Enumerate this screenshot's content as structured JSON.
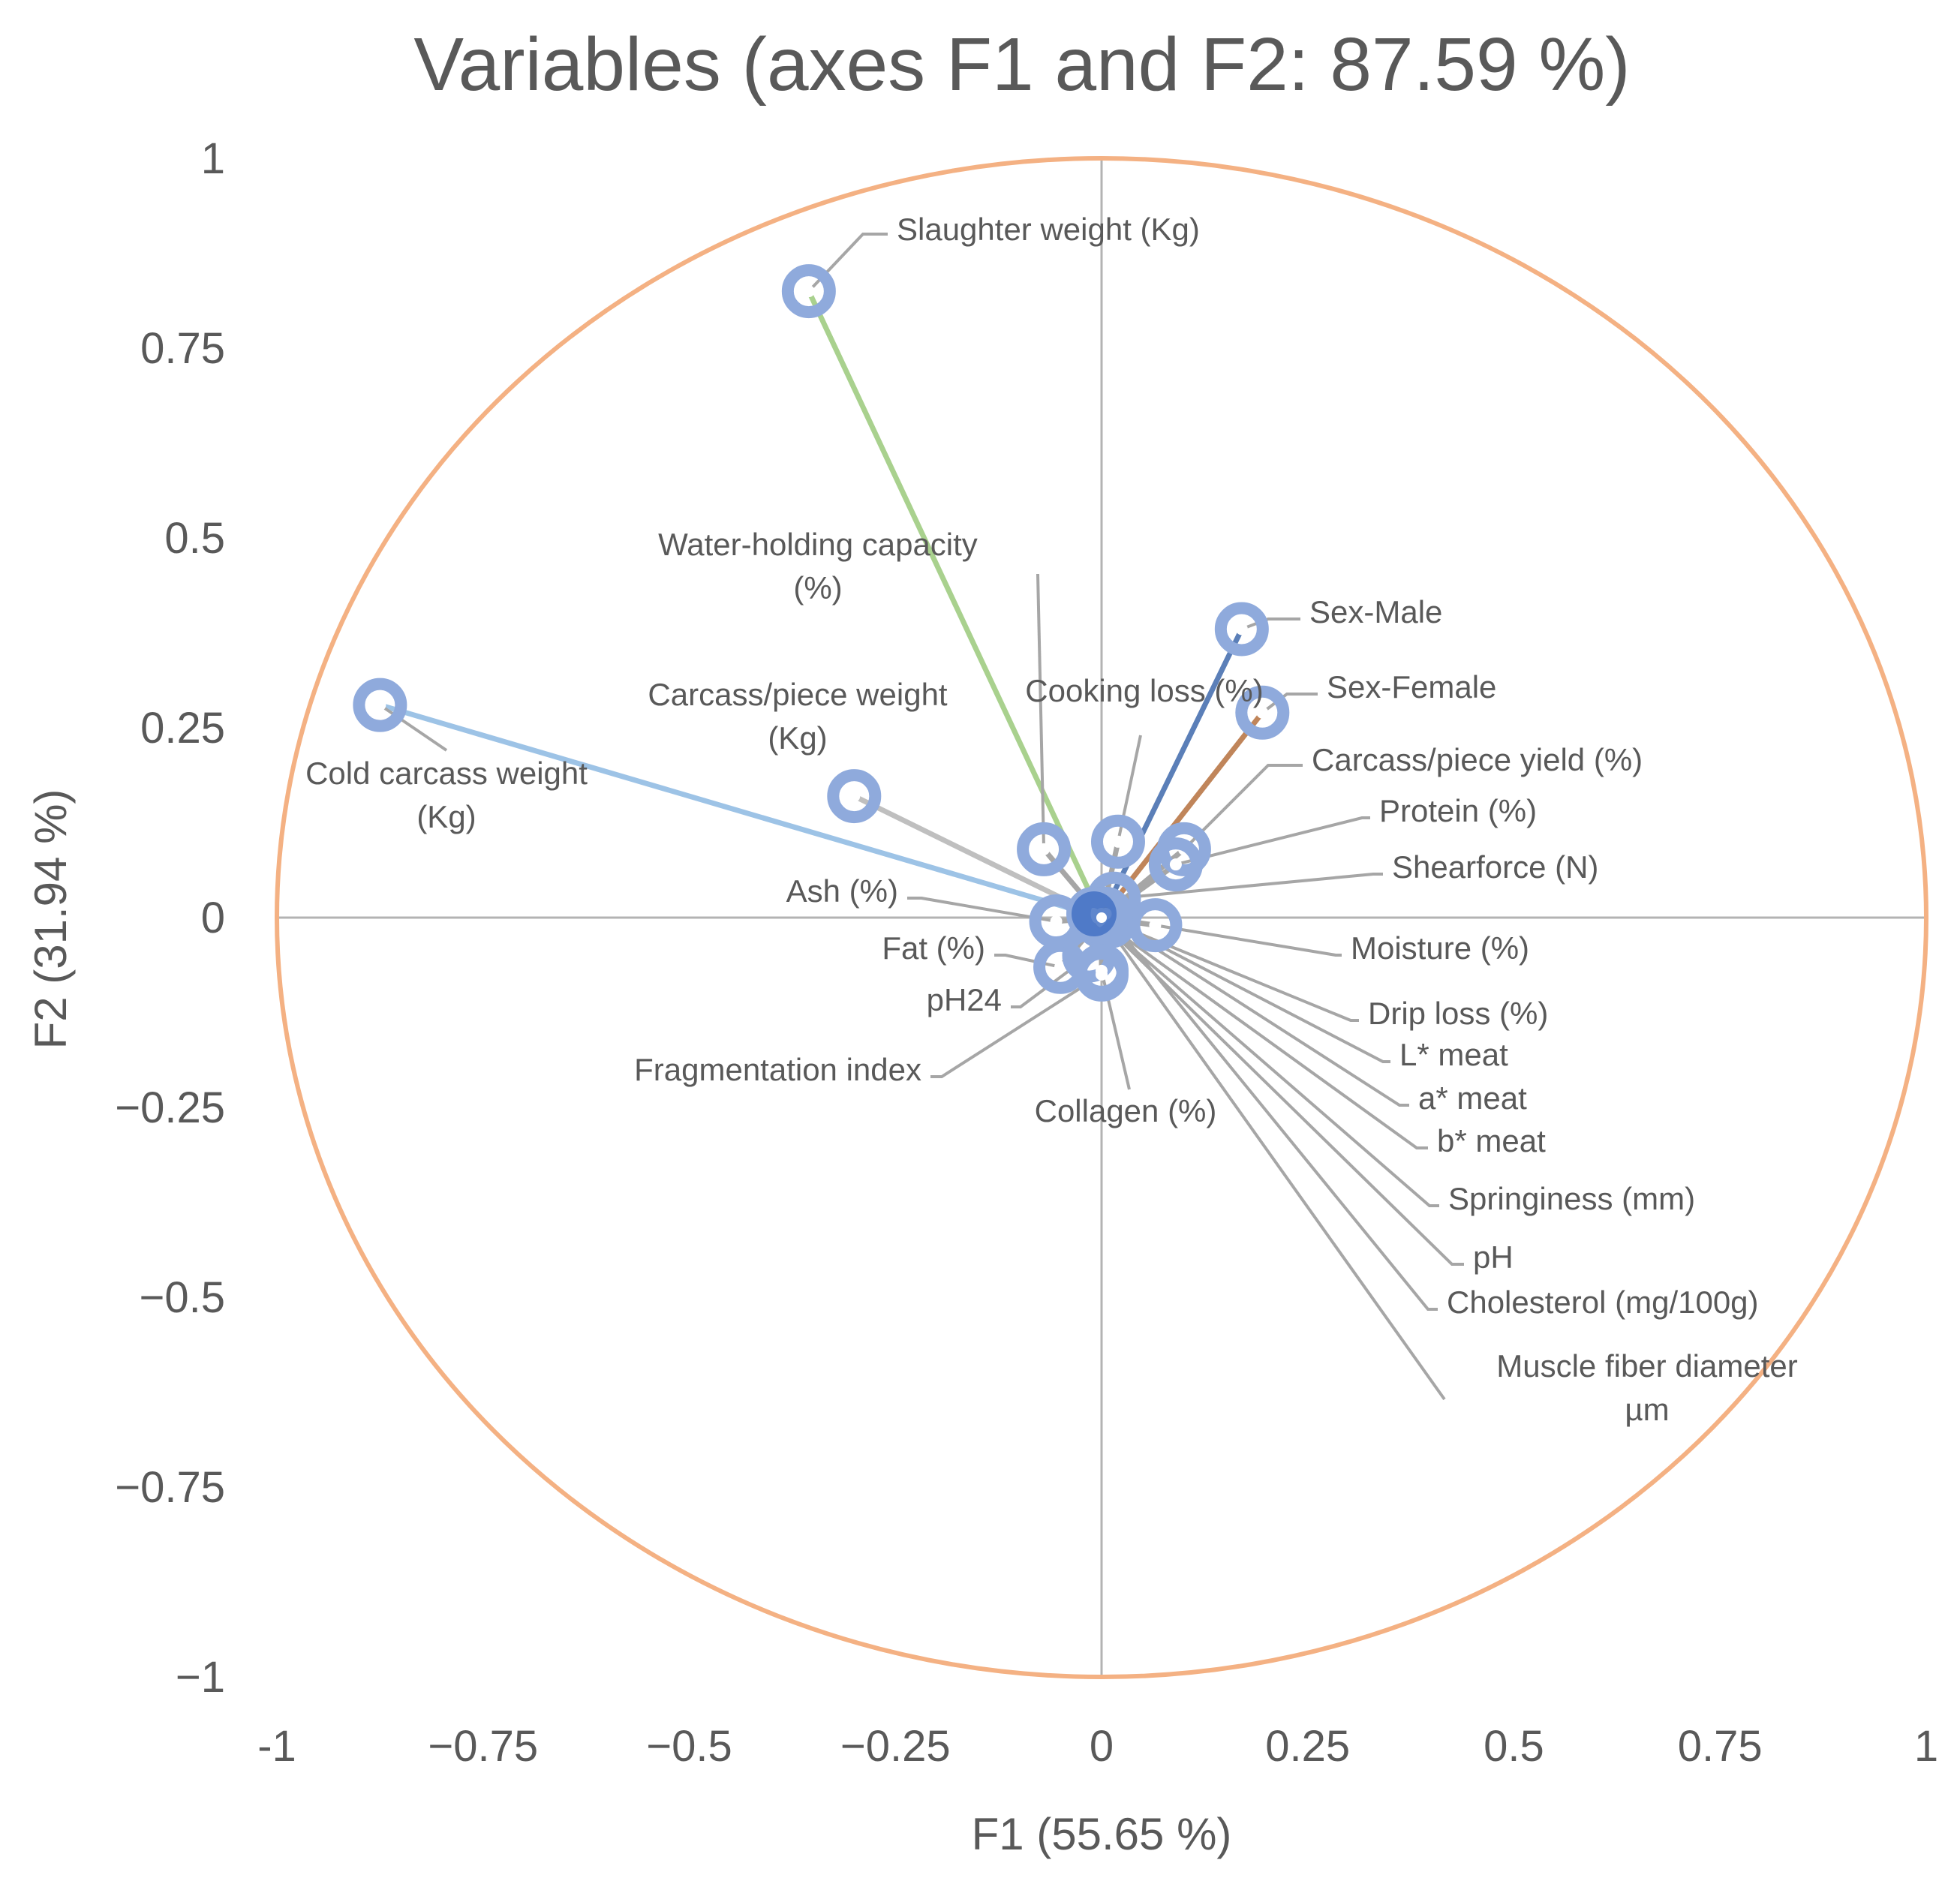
{
  "chart_data": {
    "type": "scatter",
    "subtype": "pca-correlation-circle",
    "title": "Variables (axes F1 and F2: 87.59 %)",
    "xlabel": "F1 (55.65 %)",
    "ylabel": "F2 (31.94 %)",
    "xlim": [
      -1,
      1
    ],
    "ylim": [
      -1,
      1
    ],
    "xticks": [
      -1,
      -0.75,
      -0.5,
      -0.25,
      0,
      0.25,
      0.5,
      0.75,
      1
    ],
    "yticks": [
      1,
      0.75,
      0.5,
      0.25,
      0,
      -0.25,
      -0.5,
      -0.75,
      -1
    ],
    "xtick_labels": [
      "-1",
      "−0.75",
      "−0.5",
      "−0.25",
      "0",
      "0.25",
      "0.5",
      "0.75",
      "1"
    ],
    "ytick_labels": [
      "1",
      "0.75",
      "0.5",
      "0.25",
      "0",
      "−0.25",
      "−0.5",
      "−0.75",
      "−1"
    ],
    "circle_color": "#f4b183",
    "marker_color": "#8faadc",
    "leader_color": "#a6a6a6",
    "series": [
      {
        "name": "Slaughter weight (Kg)",
        "x": -0.355,
        "y": 0.825,
        "line_color": "#a9d18e"
      },
      {
        "name": "Cold carcass weight (Kg)",
        "x": -0.875,
        "y": 0.28,
        "line_color": "#9dc3e6"
      },
      {
        "name": "Carcass/piece weight (Kg)",
        "x": -0.3,
        "y": 0.16,
        "line_color": "#bfbfbf"
      },
      {
        "name": "Water-holding capacity (%)",
        "x": -0.07,
        "y": 0.09,
        "line_color": "#a6a6a6"
      },
      {
        "name": "Sex-Male",
        "x": 0.17,
        "y": 0.38,
        "line_color": "#5b7fb8"
      },
      {
        "name": "Sex-Female",
        "x": 0.195,
        "y": 0.27,
        "line_color": "#c0855a"
      },
      {
        "name": "Cooking loss (%)",
        "x": 0.02,
        "y": 0.1,
        "line_color": "#a6a6a6"
      },
      {
        "name": "Carcass/piece yield (%)",
        "x": 0.1,
        "y": 0.09,
        "line_color": "#a6a6a6"
      },
      {
        "name": "Protein (%)",
        "x": 0.09,
        "y": 0.07,
        "line_color": "#a6a6a6"
      },
      {
        "name": "Shearforce (N)",
        "x": 0.015,
        "y": 0.025,
        "line_color": "#a6a6a6"
      },
      {
        "name": "Ash (%)",
        "x": -0.055,
        "y": -0.005,
        "line_color": "#a6a6a6"
      },
      {
        "name": "Moisture (%)",
        "x": 0.065,
        "y": -0.01,
        "line_color": "#a6a6a6"
      },
      {
        "name": "Fat (%)",
        "x": -0.05,
        "y": -0.065,
        "line_color": "#a6a6a6"
      },
      {
        "name": "pH24",
        "x": -0.015,
        "y": -0.05,
        "line_color": "#a6a6a6"
      },
      {
        "name": "Fragmentation index",
        "x": 0.0,
        "y": -0.075,
        "line_color": "#a6a6a6"
      },
      {
        "name": "Collagen (%)",
        "x": 0.0,
        "y": -0.07,
        "line_color": "#a6a6a6"
      },
      {
        "name": "Drip loss (%)",
        "x": 0.01,
        "y": -0.005,
        "line_color": "#a6a6a6"
      },
      {
        "name": "L* meat",
        "x": 0.005,
        "y": 0.0,
        "line_color": "#a6a6a6"
      },
      {
        "name": "a* meat",
        "x": 0.0,
        "y": 0.005,
        "line_color": "#a6a6a6"
      },
      {
        "name": "b* meat",
        "x": -0.005,
        "y": 0.0,
        "line_color": "#a6a6a6"
      },
      {
        "name": "Springiness (mm)",
        "x": 0.0,
        "y": -0.005,
        "line_color": "#a6a6a6"
      },
      {
        "name": "pH",
        "x": -0.01,
        "y": 0.005,
        "line_color": "#a6a6a6"
      },
      {
        "name": "Cholesterol (mg/100g)",
        "x": 0.005,
        "y": 0.005,
        "line_color": "#a6a6a6"
      },
      {
        "name": "Muscle fiber diameter µm",
        "x": 0.0,
        "y": 0.0,
        "line_color": "#a6a6a6"
      }
    ]
  }
}
